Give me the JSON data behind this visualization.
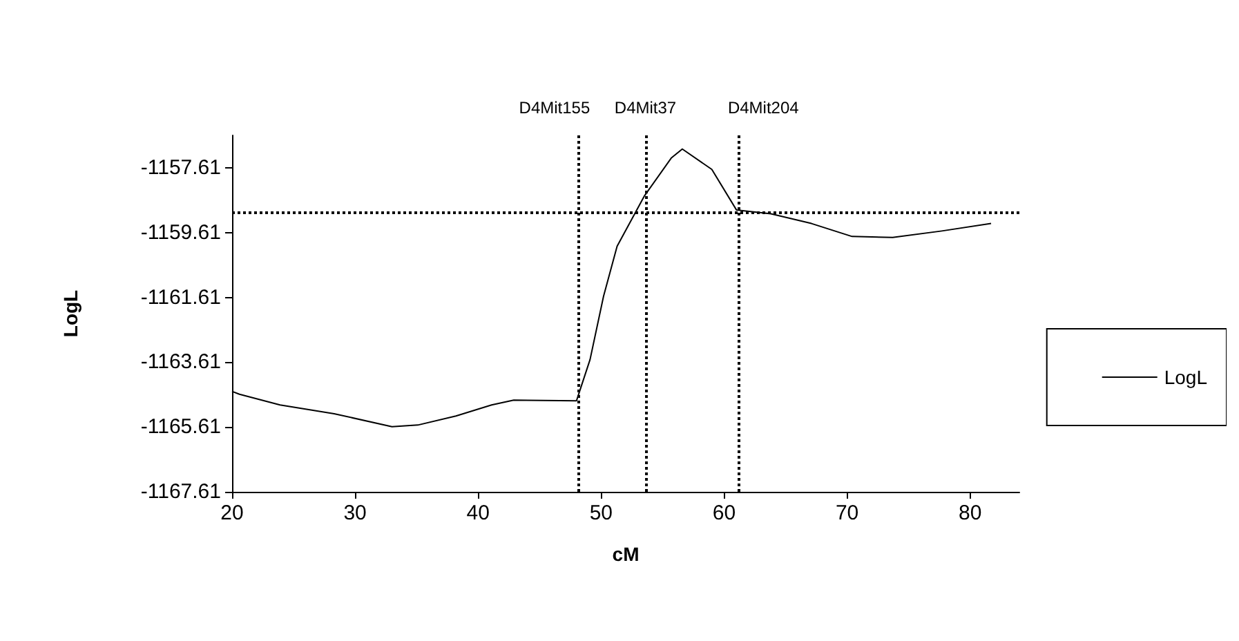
{
  "chart_data": {
    "type": "line",
    "xlabel": "cM",
    "ylabel": "LogL",
    "x": [
      20,
      20.6,
      23.9,
      28.3,
      33.0,
      35.1,
      38.2,
      41.1,
      42.9,
      48.0,
      49.1,
      50.2,
      51.3,
      53.5,
      55.7,
      56.6,
      59.0,
      61.0,
      63.8,
      67.1,
      70.4,
      73.7,
      77.7,
      81.7
    ],
    "series": [
      {
        "name": "LogL",
        "color": "#000000",
        "values": [
          -1164.51,
          -1164.6,
          -1164.93,
          -1165.2,
          -1165.6,
          -1165.55,
          -1165.27,
          -1164.93,
          -1164.78,
          -1164.8,
          -1163.53,
          -1161.57,
          -1160.03,
          -1158.49,
          -1157.31,
          -1157.03,
          -1157.66,
          -1158.91,
          -1159.03,
          -1159.33,
          -1159.73,
          -1159.76,
          -1159.56,
          -1159.33
        ]
      }
    ],
    "xlim": [
      20,
      84
    ],
    "xticks": [
      20,
      30,
      40,
      50,
      60,
      70,
      80
    ],
    "ylim": [
      -1167.61,
      -1156.61
    ],
    "yticks": [
      -1167.61,
      -1165.61,
      -1163.61,
      -1161.61,
      -1159.61,
      -1157.61
    ],
    "ref_lines": [
      {
        "axis": "x",
        "value": 48.2,
        "label": "D4Mit155",
        "line_style": "dotted",
        "color": "#000000"
      },
      {
        "axis": "x",
        "value": 53.6,
        "label": "D4Mit37",
        "line_style": "dotted",
        "color": "#000000"
      },
      {
        "axis": "x",
        "value": 61.2,
        "label": "D4Mit204",
        "line_style": "dotted",
        "color": "#000000"
      },
      {
        "axis": "y",
        "value": -1159.0,
        "label": null,
        "line_style": "dotted",
        "color": "#000000"
      }
    ],
    "grid": false,
    "legend": "right",
    "marker": "none",
    "line_style": "solid"
  }
}
